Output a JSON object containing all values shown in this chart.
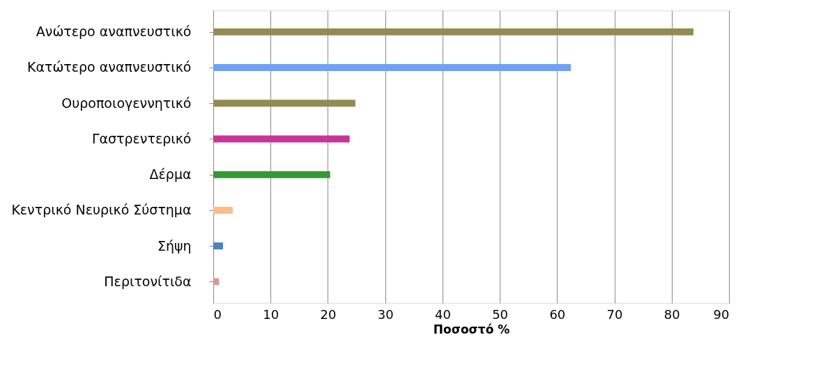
{
  "chart_data": {
    "type": "bar",
    "orientation": "horizontal",
    "xlabel": "Ποσοστό %",
    "categories": [
      "Ανώτερο αναπνευστικό",
      "Κατώτερο αναπνευστικό",
      "Ουροποιογεννητικό",
      "Γαστρεντερικό",
      "Δέρμα",
      "Κεντρικό Νευρικό Σύστημα",
      "Σήψη",
      "Περιτονίτιδα"
    ],
    "values": [
      83.8,
      62.4,
      24.8,
      23.8,
      20.4,
      3.4,
      1.7,
      1.0
    ],
    "colors": [
      "#948a54",
      "#6fa0f5",
      "#948a54",
      "#cc3399",
      "#339933",
      "#f9be8c",
      "#4f81bd",
      "#d99694"
    ],
    "xlim": [
      0,
      90
    ],
    "xticks": [
      0,
      10,
      20,
      30,
      40,
      50,
      60,
      70,
      80,
      90
    ],
    "grid": "x"
  }
}
